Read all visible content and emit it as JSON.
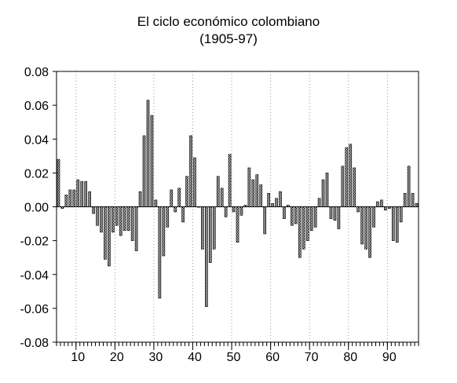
{
  "chart_data": {
    "type": "bar",
    "title": "El ciclo económico colombiano",
    "subtitle": "(1905-97)",
    "xlabel": "",
    "ylabel": "",
    "x_start": 1905,
    "x_end": 1997,
    "x_tick_labels": [
      "10",
      "20",
      "30",
      "40",
      "50",
      "60",
      "70",
      "80",
      "90"
    ],
    "y_tick_labels": [
      "0.08",
      "0.06",
      "0.04",
      "0.02",
      "0.00",
      "-0.02",
      "-0.04",
      "-0.06",
      "-0.08"
    ],
    "ylim": [
      -0.08,
      0.08
    ],
    "grid": "vertical dotted at each labeled decade",
    "fill_pattern": "checkered hatch",
    "series": [
      {
        "values": [
          0.028,
          -0.001,
          0.007,
          0.01,
          0.01,
          0.016,
          0.015,
          0.015,
          0.009,
          -0.004,
          -0.011,
          -0.015,
          -0.031,
          -0.035,
          -0.015,
          -0.011,
          -0.017,
          -0.014,
          -0.014,
          -0.02,
          -0.026,
          0.009,
          0.042,
          0.063,
          0.054,
          0.004,
          -0.054,
          -0.029,
          -0.012,
          0.01,
          -0.003,
          0.011,
          -0.009,
          0.018,
          0.042,
          0.029,
          0.0,
          -0.025,
          -0.059,
          -0.033,
          -0.025,
          0.018,
          0.011,
          -0.006,
          0.031,
          -0.003,
          -0.021,
          -0.005,
          0.001,
          0.023,
          0.016,
          0.019,
          0.013,
          -0.016,
          0.008,
          0.002,
          0.005,
          0.009,
          -0.007,
          0.001,
          -0.011,
          -0.01,
          -0.03,
          -0.025,
          -0.02,
          -0.014,
          -0.012,
          0.005,
          0.016,
          0.02,
          -0.007,
          -0.008,
          -0.013,
          0.024,
          0.035,
          0.037,
          0.023,
          -0.003,
          -0.022,
          -0.025,
          -0.03,
          -0.012,
          0.003,
          0.004,
          -0.002,
          -0.001,
          -0.02,
          -0.021,
          -0.009,
          0.008,
          0.024,
          0.008,
          0.002
        ]
      }
    ]
  }
}
